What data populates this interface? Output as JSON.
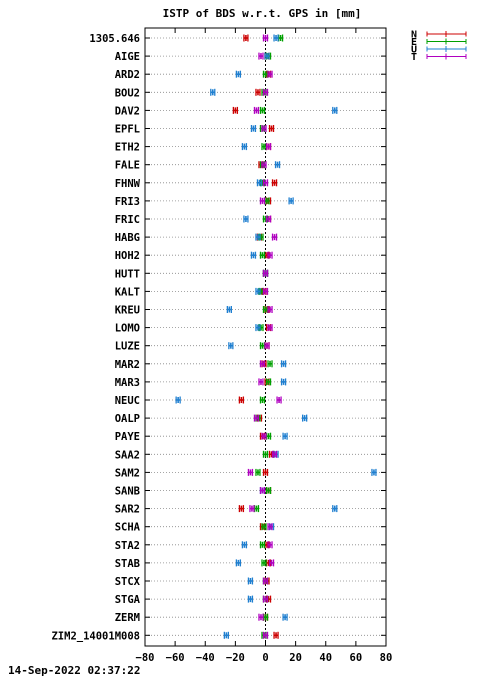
{
  "timestamp": "14-Sep-2022 02:37:22",
  "chart_data": {
    "type": "scatter",
    "title": "ISTP of BDS w.r.t. GPS in [mm]",
    "xlabel": "",
    "ylabel": "",
    "xlim": [
      -80,
      80
    ],
    "xticks": [
      -80,
      -60,
      -40,
      -20,
      0,
      20,
      40,
      60,
      80
    ],
    "grid": true,
    "legend_position": "top-right outside",
    "categories": [
      "1305.646",
      "AIGE",
      "ARD2",
      "BOU2",
      "DAV2",
      "EPFL",
      "ETH2",
      "FALE",
      "FHNW",
      "FRI3",
      "FRIC",
      "HABG",
      "HOH2",
      "HUTT",
      "KALT",
      "KREU",
      "LOMO",
      "LUZE",
      "MAR2",
      "MAR3",
      "NEUC",
      "OALP",
      "PAYE",
      "SAA2",
      "SAM2",
      "SANB",
      "SAR2",
      "SCHA",
      "STA2",
      "STAB",
      "STCX",
      "STGA",
      "ZERM",
      "ZIM2_14001M008"
    ],
    "series": [
      {
        "name": "N",
        "color": "#cc0000",
        "values": [
          -13,
          1,
          2,
          -5,
          -20,
          4,
          2,
          -3,
          6,
          2,
          2,
          -4,
          1,
          0,
          -1,
          1,
          2,
          1,
          -1,
          1,
          -16,
          -4,
          -2,
          4,
          0,
          2,
          -16,
          -2,
          1,
          2,
          1,
          2,
          0,
          7
        ]
      },
      {
        "name": "E",
        "color": "#00a000",
        "values": [
          10,
          2,
          0,
          -1,
          -2,
          -2,
          -1,
          -2,
          -2,
          1,
          0,
          -3,
          -2,
          0,
          -3,
          0,
          -3,
          -2,
          3,
          2,
          -2,
          -5,
          2,
          0,
          -5,
          2,
          -6,
          -1,
          -2,
          -1,
          0,
          0,
          0,
          -1
        ]
      },
      {
        "name": "U",
        "color": "#1f7fd0",
        "values": [
          7,
          1,
          -18,
          -35,
          46,
          -8,
          -14,
          8,
          -4,
          17,
          -13,
          -5,
          -8,
          0,
          -5,
          -24,
          -5,
          -23,
          12,
          12,
          -58,
          26,
          13,
          7,
          72,
          -2,
          46,
          4,
          -14,
          -18,
          -10,
          -10,
          13,
          -26
        ]
      },
      {
        "name": "T",
        "color": "#b000c0",
        "values": [
          0,
          -3,
          3,
          0,
          -6,
          -1,
          2,
          -1,
          0,
          -2,
          2,
          6,
          3,
          0,
          0,
          3,
          3,
          1,
          -2,
          -3,
          9,
          -6,
          -1,
          6,
          -10,
          -2,
          -9,
          3,
          3,
          4,
          0,
          0,
          -3,
          0
        ]
      }
    ]
  }
}
